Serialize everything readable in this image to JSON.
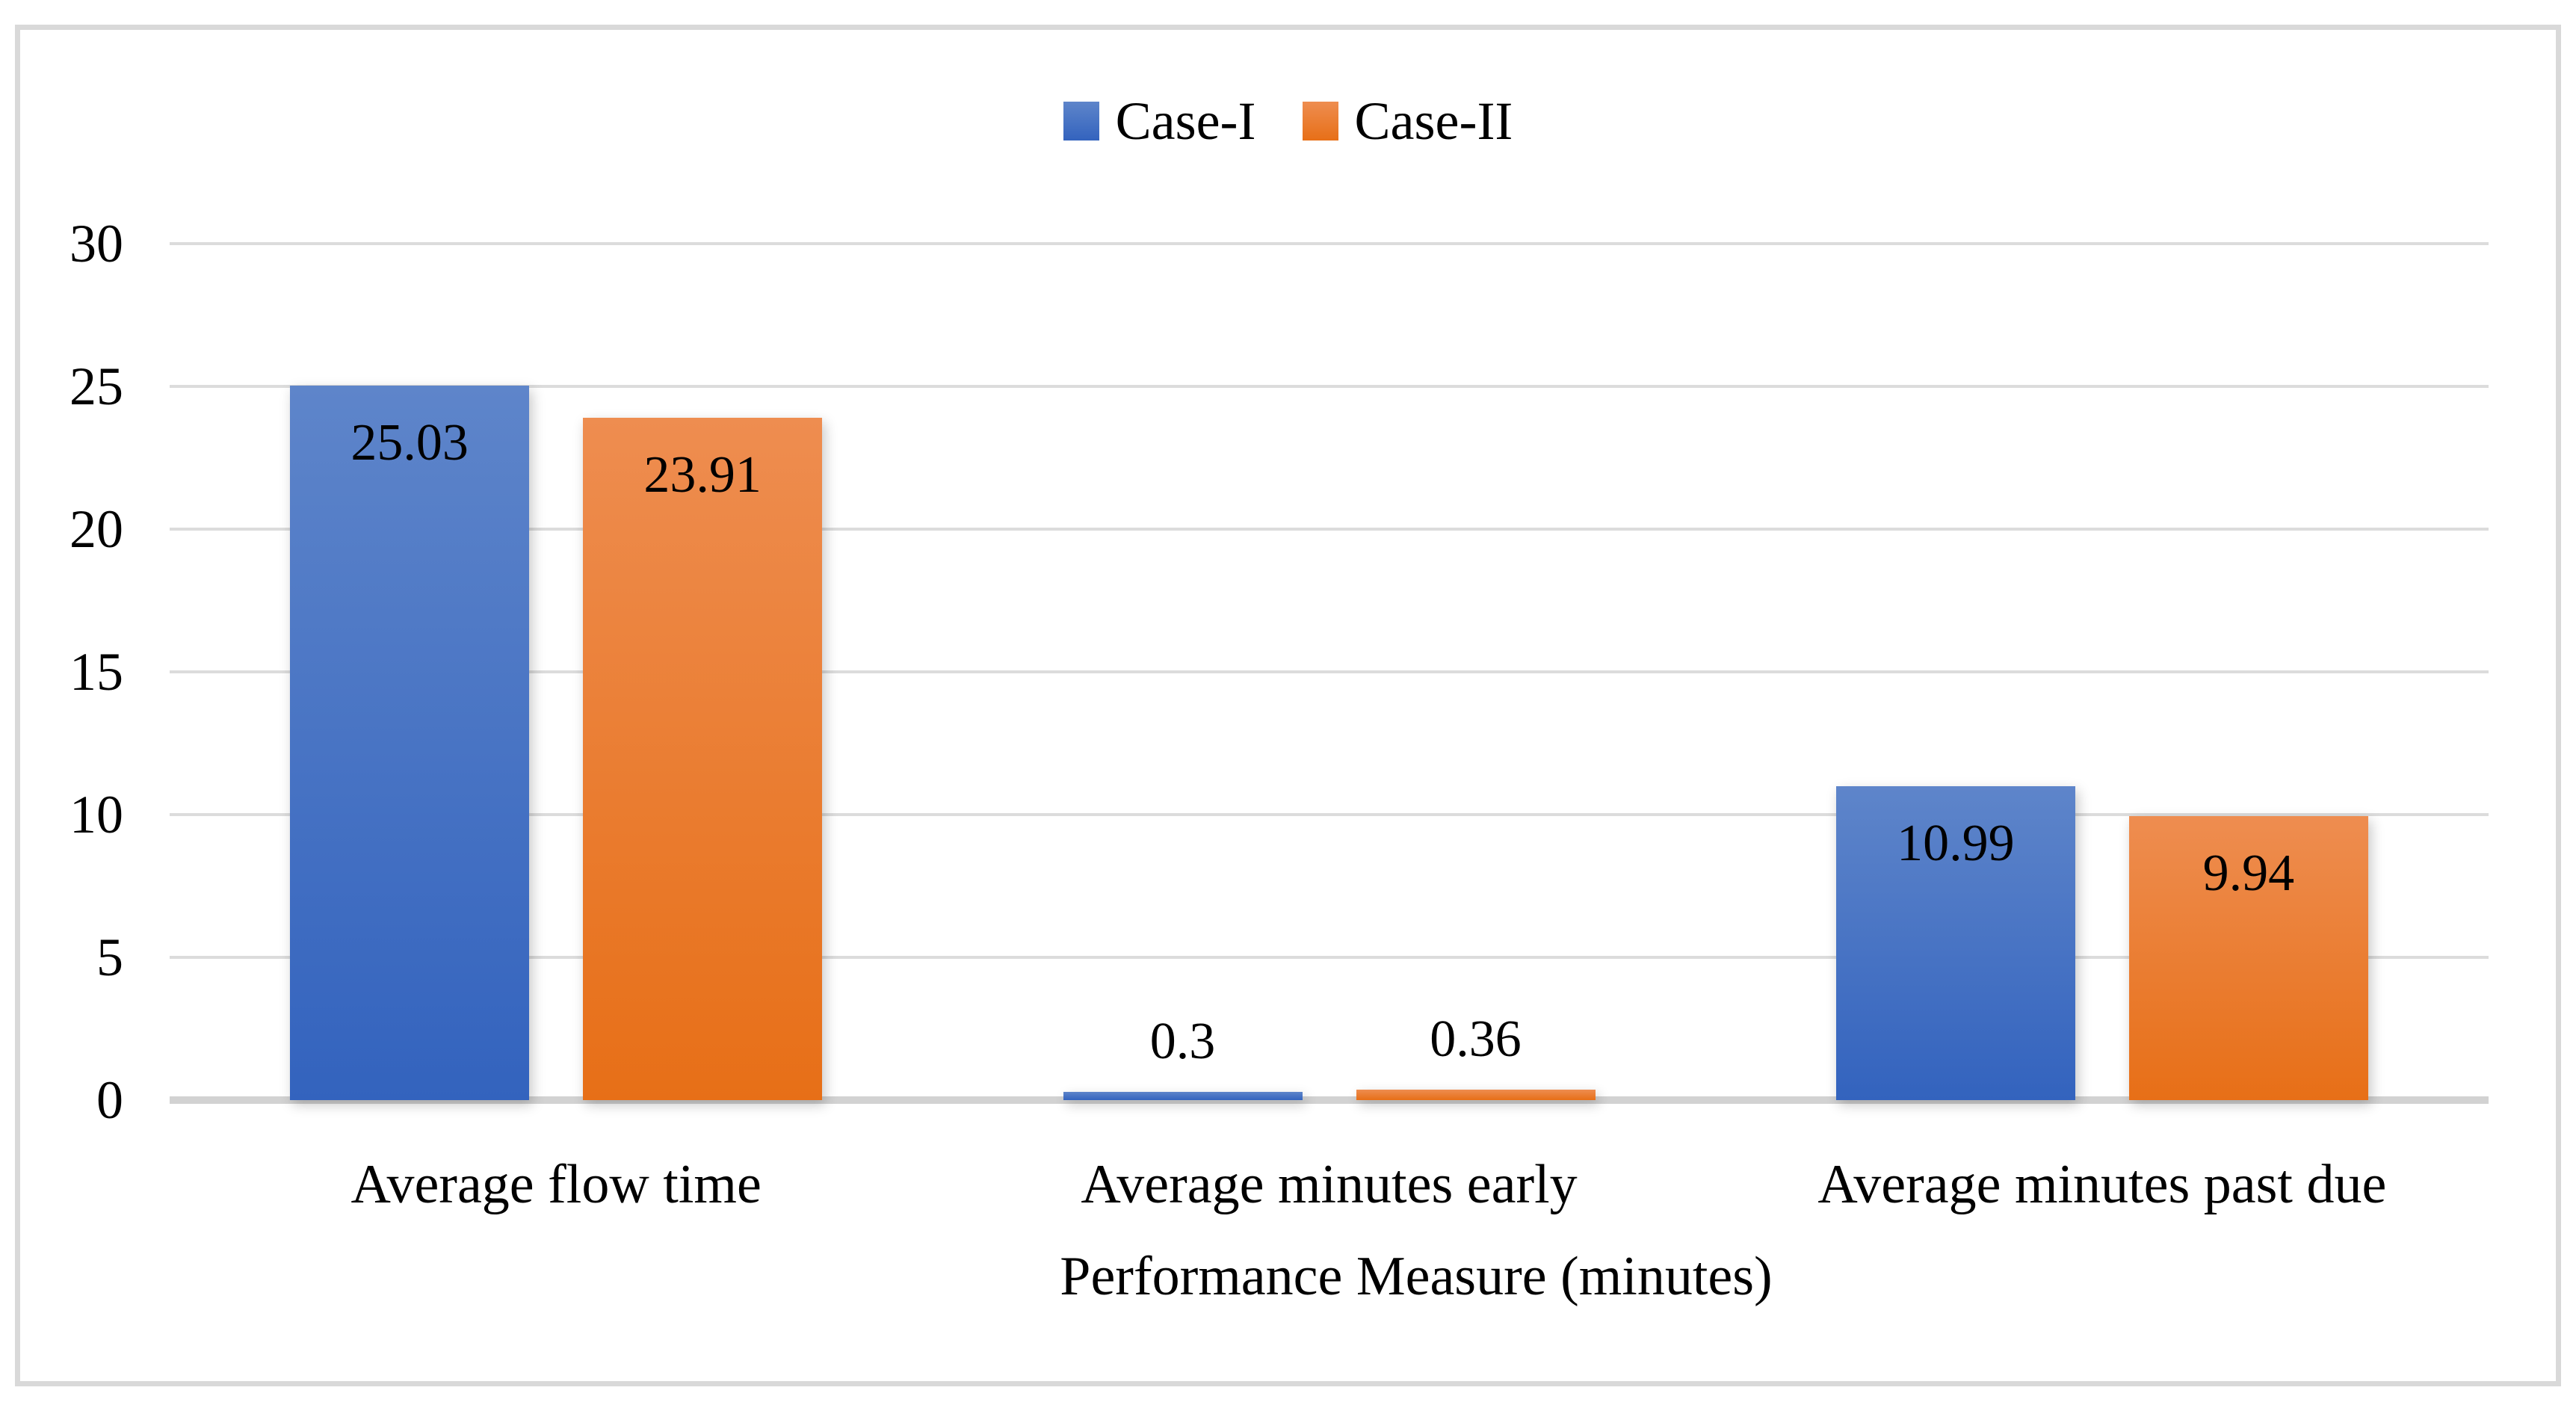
{
  "chart_data": {
    "type": "bar",
    "title": "",
    "categories": [
      "Average flow time",
      "Average minutes early",
      "Average minutes past due"
    ],
    "series": [
      {
        "name": "Case-I",
        "values": [
          25.03,
          0.3,
          10.99
        ],
        "labels": [
          "25.03",
          "0.3",
          "10.99"
        ],
        "color_top": "#5e85ca",
        "color_bottom": "#3363be"
      },
      {
        "name": "Case-II",
        "values": [
          23.91,
          0.36,
          9.94
        ],
        "labels": [
          "23.91",
          "0.36",
          "9.94"
        ],
        "color_top": "#ee8d50",
        "color_bottom": "#e76f17"
      }
    ],
    "xlabel": "Performance Measure (minutes)",
    "ylabel": "",
    "ylim": [
      0,
      30
    ],
    "yticks": [
      0,
      5,
      10,
      15,
      20,
      25,
      30
    ],
    "grid": true,
    "legend_position": "top"
  },
  "colors": {
    "gridline": "#dcdcdc",
    "axis_line": "#d2d2d2",
    "frame_border": "#d9d9d9",
    "text": "#000000",
    "background": "#ffffff"
  }
}
